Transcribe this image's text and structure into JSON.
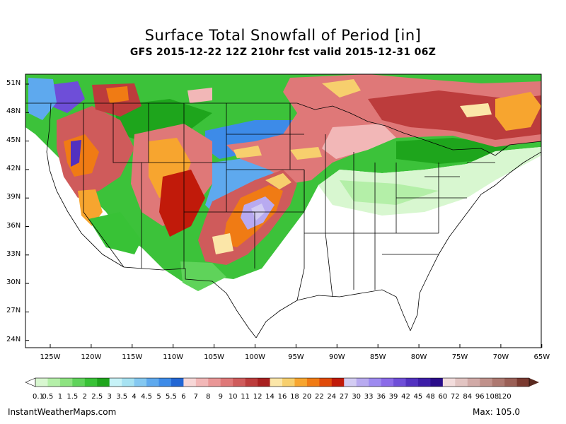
{
  "title": "Surface Total Snowfall of Period [in]",
  "subtitle": "GFS 2015-12-22 12Z 210hr fcst valid 2015-12-31 06Z",
  "lat_labels": [
    "51N",
    "48N",
    "45N",
    "42N",
    "39N",
    "36N",
    "33N",
    "30N",
    "27N",
    "24N"
  ],
  "lon_labels": [
    "125W",
    "120W",
    "115W",
    "110W",
    "105W",
    "100W",
    "95W",
    "90W",
    "85W",
    "80W",
    "75W",
    "70W",
    "65W"
  ],
  "colorbar": {
    "labels": [
      "0.1",
      "0.5",
      "1",
      "1.5",
      "2",
      "2.5",
      "3",
      "3.5",
      "4",
      "4.5",
      "5",
      "5.5",
      "6",
      "7",
      "8",
      "9",
      "10",
      "11",
      "12",
      "14",
      "16",
      "18",
      "20",
      "22",
      "24",
      "27",
      "30",
      "33",
      "36",
      "39",
      "42",
      "45",
      "48",
      "60",
      "72",
      "84",
      "96",
      "108",
      "120"
    ],
    "colors": [
      "#d8f7d0",
      "#b4efa8",
      "#8de380",
      "#5fd35a",
      "#38c236",
      "#1ea51c",
      "#c6f2f7",
      "#a6e2f2",
      "#84c8f1",
      "#5ea9ee",
      "#3d8be8",
      "#2266d4",
      "#f7d7d7",
      "#f2b7b7",
      "#e99696",
      "#df7878",
      "#cf5b5b",
      "#bc3c3c",
      "#a82020",
      "#fbe6a8",
      "#f7cf6d",
      "#f7a52f",
      "#f07b14",
      "#e04a0a",
      "#c11a0a",
      "#d3ccf3",
      "#b8aaf0",
      "#9d8af0",
      "#8a6ae8",
      "#6e4ed8",
      "#5231c0",
      "#3d1da8",
      "#2a0d8a",
      "#f2dcdc",
      "#e2c4c2",
      "#d1aaa7",
      "#c0918b",
      "#ad7870",
      "#9a5f56",
      "#7a3a30"
    ]
  },
  "footer_left": "InstantWeatherMaps.com",
  "footer_right": "Max: 105.0"
}
